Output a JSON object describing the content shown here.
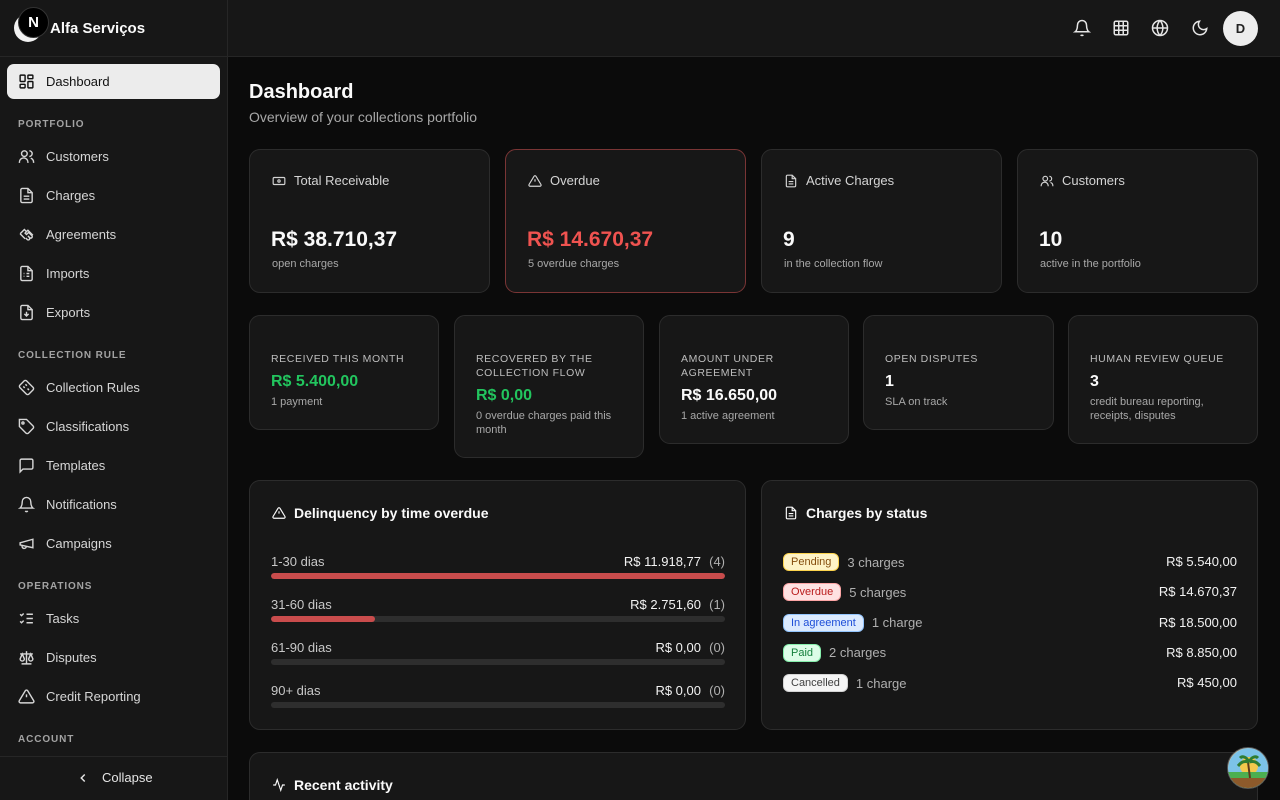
{
  "brand": {
    "initial": "A",
    "name": "Alfa Serviços"
  },
  "sidebar": {
    "dashboard": "Dashboard",
    "sections": {
      "portfolio": "PORTFOLIO",
      "collection_rule": "COLLECTION RULE",
      "operations": "OPERATIONS",
      "account": "ACCOUNT"
    },
    "portfolio_items": [
      "Customers",
      "Charges",
      "Agreements",
      "Imports",
      "Exports"
    ],
    "collection_items": [
      "Collection Rules",
      "Classifications",
      "Templates",
      "Notifications",
      "Campaigns"
    ],
    "operations_items": [
      "Tasks",
      "Disputes",
      "Credit Reporting"
    ],
    "collapse": "Collapse",
    "next_badge": "N"
  },
  "topbar": {
    "user_initial": "D"
  },
  "page": {
    "title": "Dashboard",
    "subtitle": "Overview of your collections portfolio"
  },
  "stats": [
    {
      "label": "Total Receivable",
      "value": "R$ 38.710,37",
      "sub": "open charges"
    },
    {
      "label": "Overdue",
      "value": "R$ 14.670,37",
      "sub": "5 overdue charges"
    },
    {
      "label": "Active Charges",
      "value": "9",
      "sub": "in the collection flow"
    },
    {
      "label": "Customers",
      "value": "10",
      "sub": "active in the portfolio"
    }
  ],
  "mini": [
    {
      "label": "RECEIVED THIS MONTH",
      "value": "R$ 5.400,00",
      "sub": "1 payment"
    },
    {
      "label": "RECOVERED BY THE COLLECTION FLOW",
      "value": "R$ 0,00",
      "sub": "0 overdue charges paid this month"
    },
    {
      "label": "AMOUNT UNDER AGREEMENT",
      "value": "R$ 16.650,00",
      "sub": "1 active agreement"
    },
    {
      "label": "OPEN DISPUTES",
      "value": "1",
      "sub": "SLA on track"
    },
    {
      "label": "HUMAN REVIEW QUEUE",
      "value": "3",
      "sub": "credit bureau reporting, receipts, disputes"
    }
  ],
  "delinquency": {
    "title": "Delinquency by time overdue",
    "buckets": [
      {
        "label": "1-30 dias",
        "amount": "R$ 11.918,77",
        "count": "(4)",
        "share": 1.0
      },
      {
        "label": "31-60 dias",
        "amount": "R$ 2.751,60",
        "count": "(1)",
        "share": 0.23
      },
      {
        "label": "61-90 dias",
        "amount": "R$ 0,00",
        "count": "(0)",
        "share": 0
      },
      {
        "label": "90+ dias",
        "amount": "R$ 0,00",
        "count": "(0)",
        "share": 0
      }
    ]
  },
  "status": {
    "title": "Charges by status",
    "rows": [
      {
        "label": "Pending",
        "count": "3 charges",
        "amount": "R$ 5.540,00",
        "bg": "#fef3c7",
        "fg": "#854d0e",
        "border": "#fcd34d"
      },
      {
        "label": "Overdue",
        "count": "5 charges",
        "amount": "R$ 14.670,37",
        "bg": "#fee2e2",
        "fg": "#b91c1c",
        "border": "#fca5a5"
      },
      {
        "label": "In agreement",
        "count": "1 charge",
        "amount": "R$ 18.500,00",
        "bg": "#dbeafe",
        "fg": "#1d4ed8",
        "border": "#93c5fd"
      },
      {
        "label": "Paid",
        "count": "2 charges",
        "amount": "R$ 8.850,00",
        "bg": "#dcfce7",
        "fg": "#15803d",
        "border": "#86efac"
      },
      {
        "label": "Cancelled",
        "count": "1 charge",
        "amount": "R$ 450,00",
        "bg": "#f5f5f5",
        "fg": "#404040",
        "border": "#d4d4d4"
      }
    ]
  },
  "activity": {
    "title": "Recent activity"
  },
  "colors": {
    "danger": "#ef5350",
    "success": "#22c55e",
    "bar": "#c94c4c"
  }
}
